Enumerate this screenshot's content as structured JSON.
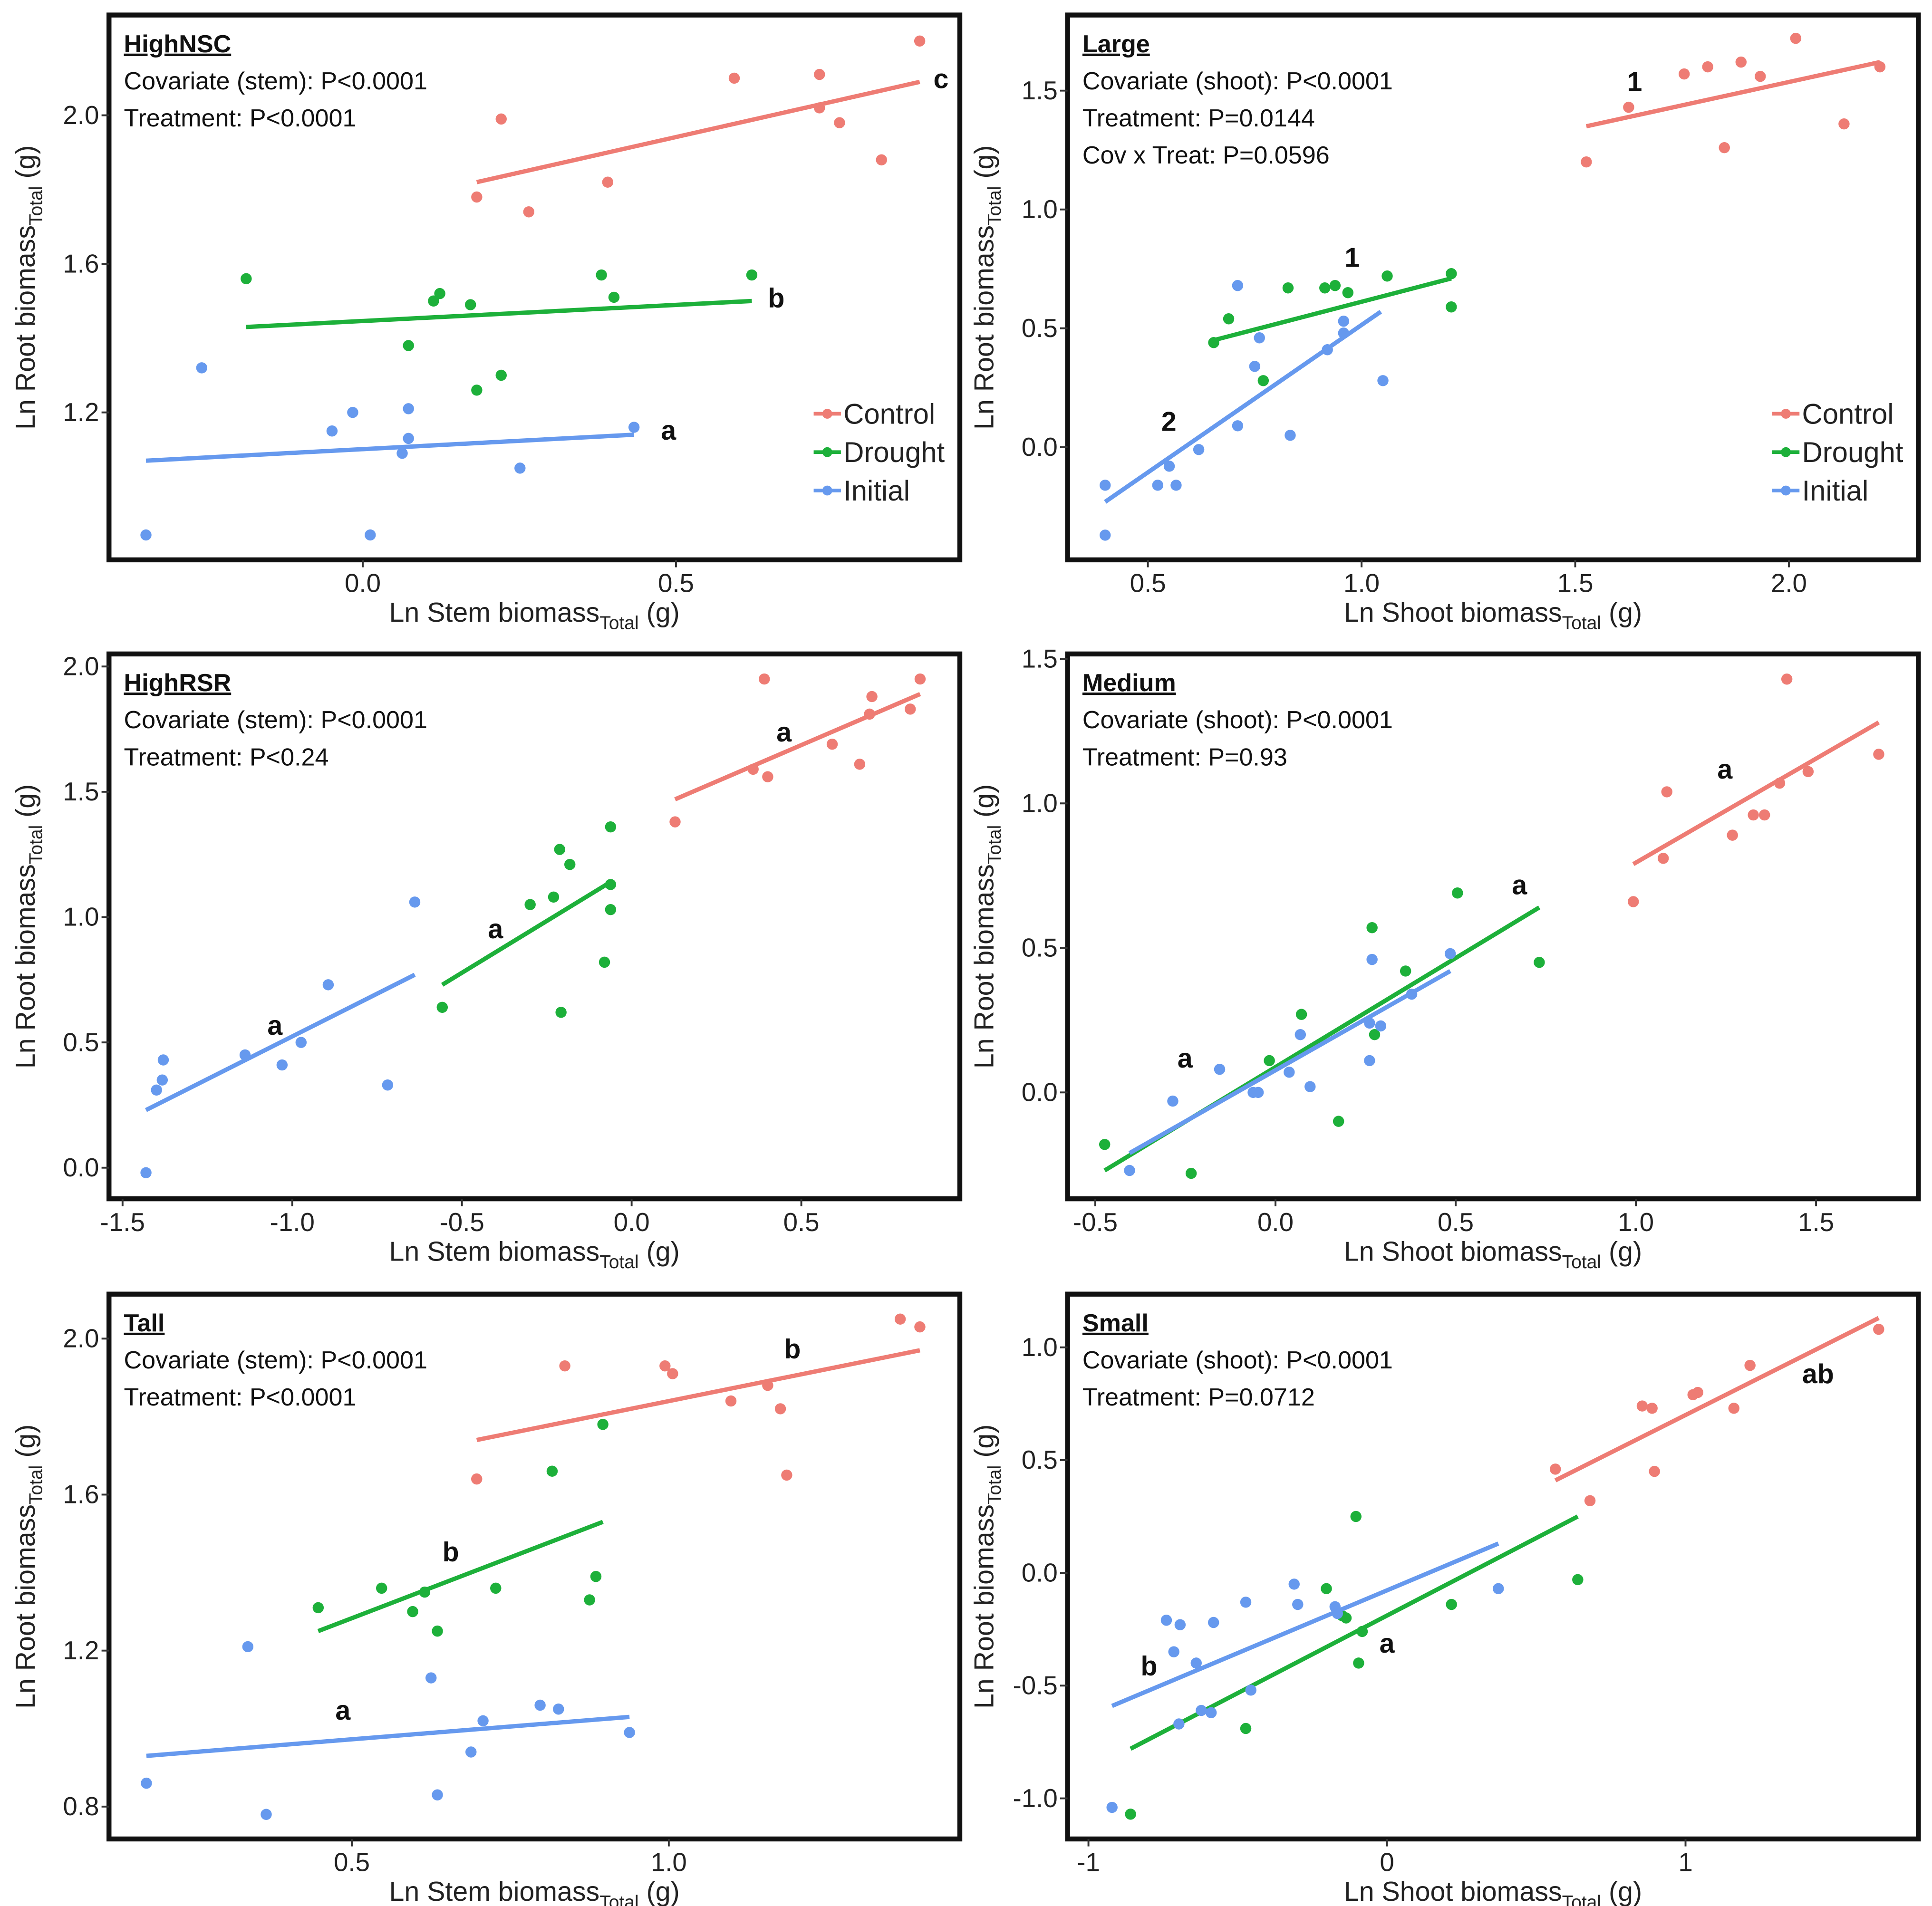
{
  "colors": {
    "Control": "#EE7C74",
    "Drought": "#1DB03A",
    "Initial": "#6699EE"
  },
  "legend": [
    "Control",
    "Drought",
    "Initial"
  ],
  "chart_data": [
    {
      "type": "scatter",
      "title": "HighNSC",
      "stats": [
        "Covariate (stem):  P<0.0001",
        "Treatment:  P<0.0001"
      ],
      "xlabel": {
        "main": "Ln Stem biomass",
        "sub": "Total",
        "unit": " (g)"
      },
      "ylabel": {
        "main": "Ln Root biomass",
        "sub": "Total",
        "unit": " (g)"
      },
      "xlim": [
        -0.405,
        0.953
      ],
      "ylim": [
        0.803,
        2.27
      ],
      "xticks": [
        "0.0",
        "0.5"
      ],
      "xtick_values": [
        0,
        0.5
      ],
      "yticks": [
        "1.2",
        "1.6",
        "2.0"
      ],
      "ytick_values": [
        1.2,
        1.6,
        2.0
      ],
      "show_legend": true,
      "series": [
        {
          "name": "Control",
          "letter": "c",
          "letter_at": [
            0.923,
            2.1
          ],
          "x": [
            0.889,
            0.593,
            0.729,
            0.729,
            0.761,
            0.828,
            0.221,
            0.182,
            0.265,
            0.391
          ],
          "y": [
            2.2,
            2.1,
            2.11,
            2.02,
            1.98,
            1.88,
            1.99,
            1.78,
            1.74,
            1.82
          ],
          "fit": [
            [
              0.182,
              1.82
            ],
            [
              0.889,
              2.09
            ]
          ]
        },
        {
          "name": "Drought",
          "letter": "b",
          "letter_at": [
            0.66,
            1.51
          ],
          "x": [
            -0.186,
            0.073,
            0.113,
            0.123,
            0.172,
            0.182,
            0.221,
            0.381,
            0.401,
            0.621
          ],
          "y": [
            1.56,
            1.38,
            1.5,
            1.52,
            1.49,
            1.26,
            1.3,
            1.57,
            1.51,
            1.57
          ],
          "fit": [
            [
              -0.186,
              1.43
            ],
            [
              0.621,
              1.5
            ]
          ]
        },
        {
          "name": "Initial",
          "letter": "a",
          "letter_at": [
            0.488,
            1.153
          ],
          "x": [
            -0.257,
            -0.346,
            0.012,
            -0.049,
            -0.016,
            0.073,
            0.073,
            0.063,
            0.251,
            0.433
          ],
          "y": [
            1.32,
            0.87,
            0.87,
            1.15,
            1.2,
            1.21,
            1.13,
            1.09,
            1.05,
            1.16
          ],
          "fit": [
            [
              -0.346,
              1.07
            ],
            [
              0.433,
              1.14
            ]
          ]
        }
      ]
    },
    {
      "type": "scatter",
      "title": "Large",
      "stats": [
        "Covariate (shoot):  P<0.0001",
        "Treatment:  P=0.0144",
        "Cov x Treat: P=0.0596"
      ],
      "xlabel": {
        "main": "Ln Shoot biomass",
        "sub": "Total",
        "unit": " (g)"
      },
      "ylabel": {
        "main": "Ln Root biomass",
        "sub": "Total",
        "unit": " (g)"
      },
      "xlim": [
        0.312,
        2.303
      ],
      "ylim": [
        -0.474,
        1.818
      ],
      "xticks": [
        "0.5",
        "1.0",
        "1.5",
        "2.0"
      ],
      "xtick_values": [
        0.5,
        1.0,
        1.5,
        2.0
      ],
      "yticks": [
        "0.0",
        "0.5",
        "1.0",
        "1.5"
      ],
      "ytick_values": [
        0,
        0.5,
        1.0,
        1.5
      ],
      "show_legend": true,
      "series": [
        {
          "name": "Control",
          "letter": "1",
          "letter_at": [
            1.639,
            1.54
          ],
          "x": [
            1.526,
            1.625,
            1.755,
            1.81,
            1.888,
            1.933,
            2.016,
            1.849,
            2.129,
            2.213
          ],
          "y": [
            1.2,
            1.43,
            1.57,
            1.6,
            1.62,
            1.56,
            1.72,
            1.26,
            1.36,
            1.6
          ],
          "fit": [
            [
              1.526,
              1.35
            ],
            [
              2.213,
              1.62
            ]
          ]
        },
        {
          "name": "Drought",
          "letter": "1",
          "letter_at": [
            0.978,
            0.8
          ],
          "x": [
            0.654,
            0.689,
            0.77,
            0.828,
            0.938,
            0.914,
            0.968,
            1.06,
            1.21,
            1.21
          ],
          "y": [
            0.44,
            0.54,
            0.28,
            0.67,
            0.68,
            0.67,
            0.65,
            0.72,
            0.73,
            0.59
          ],
          "fit": [
            [
              0.654,
              0.45
            ],
            [
              1.21,
              0.71
            ]
          ]
        },
        {
          "name": "Initial",
          "letter": "2",
          "letter_at": [
            0.549,
            0.11
          ],
          "x": [
            0.4,
            0.4,
            0.523,
            0.55,
            0.566,
            0.619,
            0.71,
            0.71,
            0.75,
            0.761,
            0.833,
            0.92,
            0.958,
            0.958,
            1.05
          ],
          "y": [
            -0.16,
            -0.37,
            -0.16,
            -0.08,
            -0.16,
            -0.01,
            0.68,
            0.09,
            0.34,
            0.46,
            0.05,
            0.41,
            0.53,
            0.48,
            0.28
          ],
          "fit": [
            [
              0.4,
              -0.23
            ],
            [
              1.045,
              0.57
            ]
          ]
        }
      ]
    },
    {
      "type": "scatter",
      "title": "HighRSR",
      "stats": [
        "Covariate (stem):  P<0.0001",
        "Treatment:  P<0.24"
      ],
      "xlabel": {
        "main": "Ln Stem biomass",
        "sub": "Total",
        "unit": " (g)"
      },
      "ylabel": {
        "main": "Ln Root biomass",
        "sub": "Total",
        "unit": " (g)"
      },
      "xlim": [
        -1.54,
        0.967
      ],
      "ylim": [
        -0.124,
        2.05
      ],
      "xticks": [
        "-1.5",
        "-1.0",
        "-0.5",
        "0.0",
        "0.5"
      ],
      "xtick_values": [
        -1.5,
        -1.0,
        -0.5,
        0,
        0.5
      ],
      "yticks": [
        "0.0",
        "0.5",
        "1.0",
        "1.5",
        "2.0"
      ],
      "ytick_values": [
        0,
        0.5,
        1.0,
        1.5,
        2.0
      ],
      "show_legend": false,
      "series": [
        {
          "name": "Control",
          "letter": "a",
          "letter_at": [
            0.449,
            1.74
          ],
          "x": [
            0.128,
            0.358,
            0.391,
            0.401,
            0.591,
            0.672,
            0.701,
            0.708,
            0.821,
            0.85
          ],
          "y": [
            1.38,
            1.59,
            1.95,
            1.56,
            1.69,
            1.61,
            1.81,
            1.88,
            1.83,
            1.95
          ],
          "fit": [
            [
              0.128,
              1.47
            ],
            [
              0.85,
              1.89
            ]
          ]
        },
        {
          "name": "Drought",
          "letter": "a",
          "letter_at": [
            -0.401,
            0.955
          ],
          "x": [
            -0.558,
            -0.299,
            -0.23,
            -0.212,
            -0.182,
            -0.208,
            -0.08,
            -0.062,
            -0.062,
            -0.062
          ],
          "y": [
            0.64,
            1.05,
            1.08,
            1.27,
            1.21,
            0.62,
            0.82,
            1.36,
            1.13,
            1.03
          ],
          "fit": [
            [
              -0.558,
              0.73
            ],
            [
              -0.062,
              1.14
            ]
          ]
        },
        {
          "name": "Initial",
          "letter": "a",
          "letter_at": [
            -1.051,
            0.57
          ],
          "x": [
            -1.431,
            -1.4,
            -1.38,
            -1.383,
            -1.139,
            -1.03,
            -0.974,
            -0.894,
            -0.719,
            -0.639
          ],
          "y": [
            -0.02,
            0.31,
            0.43,
            0.35,
            0.45,
            0.41,
            0.5,
            0.73,
            0.33,
            1.06
          ],
          "fit": [
            [
              -1.431,
              0.23
            ],
            [
              -0.639,
              0.77
            ]
          ]
        }
      ]
    },
    {
      "type": "scatter",
      "title": "Medium",
      "stats": [
        "Covariate (shoot):  P<0.0001",
        "Treatment:  P=0.93"
      ],
      "xlabel": {
        "main": "Ln Shoot biomass",
        "sub": "Total",
        "unit": " (g)"
      },
      "ylabel": {
        "main": "Ln Root biomass",
        "sub": "Total",
        "unit": " (g)"
      },
      "xlim": [
        -0.577,
        1.784
      ],
      "ylim": [
        -0.368,
        1.517
      ],
      "xticks": [
        "-0.5",
        "0.0",
        "0.5",
        "1.0",
        "1.5"
      ],
      "xtick_values": [
        -0.5,
        0,
        0.5,
        1.0,
        1.5
      ],
      "yticks": [
        "0.0",
        "0.5",
        "1.0",
        "1.5"
      ],
      "ytick_values": [
        0,
        0.5,
        1.0,
        1.5
      ],
      "show_legend": false,
      "series": [
        {
          "name": "Control",
          "letter": "a",
          "letter_at": [
            1.247,
            1.12
          ],
          "x": [
            0.993,
            1.076,
            1.086,
            1.268,
            1.326,
            1.357,
            1.399,
            1.419,
            1.478,
            1.674
          ],
          "y": [
            0.66,
            0.81,
            1.04,
            0.89,
            0.96,
            0.96,
            1.07,
            1.43,
            1.11,
            1.17
          ],
          "fit": [
            [
              0.993,
              0.79
            ],
            [
              1.674,
              1.28
            ]
          ]
        },
        {
          "name": "Drought",
          "letter": "a",
          "letter_at": [
            0.677,
            0.72
          ],
          "x": [
            -0.474,
            -0.234,
            -0.017,
            0.072,
            0.175,
            0.268,
            0.275,
            0.361,
            0.505,
            0.732
          ],
          "y": [
            -0.18,
            -0.28,
            0.11,
            0.27,
            -0.1,
            0.57,
            0.2,
            0.42,
            0.69,
            0.45
          ],
          "fit": [
            [
              -0.474,
              -0.27
            ],
            [
              0.732,
              0.64
            ]
          ]
        },
        {
          "name": "Initial",
          "letter": "a",
          "letter_at": [
            -0.251,
            0.12
          ],
          "x": [
            -0.405,
            -0.285,
            -0.155,
            -0.062,
            -0.048,
            0.038,
            0.069,
            0.096,
            0.261,
            0.261,
            0.268,
            0.292,
            0.378,
            0.485
          ],
          "y": [
            -0.27,
            -0.03,
            0.08,
            0.0,
            0.0,
            0.07,
            0.2,
            0.02,
            0.11,
            0.24,
            0.46,
            0.23,
            0.34,
            0.48
          ],
          "fit": [
            [
              -0.405,
              -0.21
            ],
            [
              0.485,
              0.42
            ]
          ]
        }
      ]
    },
    {
      "type": "scatter",
      "title": "Tall",
      "stats": [
        "Covariate (stem):  P<0.0001",
        "Treatment: P<0.0001"
      ],
      "xlabel": {
        "main": "Ln Stem biomass",
        "sub": "Total",
        "unit": " (g)"
      },
      "ylabel": {
        "main": "Ln Root biomass",
        "sub": "Total",
        "unit": " (g)"
      },
      "xlim": [
        0.117,
        1.459
      ],
      "ylim": [
        0.717,
        2.114
      ],
      "xticks": [
        "0.5",
        "1.0"
      ],
      "xtick_values": [
        0.5,
        1.0
      ],
      "yticks": [
        "0.8",
        "1.2",
        "1.6",
        "2.0"
      ],
      "ytick_values": [
        0.8,
        1.2,
        1.6,
        2.0
      ],
      "show_legend": false,
      "series": [
        {
          "name": "Control",
          "letter": "b",
          "letter_at": [
            1.195,
            1.975
          ],
          "x": [
            0.697,
            0.836,
            0.994,
            1.006,
            1.098,
            1.156,
            1.176,
            1.186,
            1.365,
            1.396
          ],
          "y": [
            1.64,
            1.93,
            1.93,
            1.91,
            1.84,
            1.88,
            1.82,
            1.65,
            2.05,
            2.03
          ],
          "fit": [
            [
              0.697,
              1.74
            ],
            [
              1.396,
              1.97
            ]
          ]
        },
        {
          "name": "Drought",
          "letter": "b",
          "letter_at": [
            0.656,
            1.455
          ],
          "x": [
            0.447,
            0.547,
            0.596,
            0.615,
            0.635,
            0.727,
            0.816,
            0.875,
            0.885,
            0.896
          ],
          "y": [
            1.31,
            1.36,
            1.3,
            1.35,
            1.25,
            1.36,
            1.66,
            1.33,
            1.39,
            1.78
          ],
          "fit": [
            [
              0.447,
              1.25
            ],
            [
              0.896,
              1.53
            ]
          ]
        },
        {
          "name": "Initial",
          "letter": "a",
          "letter_at": [
            0.486,
            1.048
          ],
          "x": [
            0.176,
            0.336,
            0.365,
            0.625,
            0.635,
            0.688,
            0.707,
            0.797,
            0.826,
            0.938
          ],
          "y": [
            0.86,
            1.21,
            0.78,
            1.13,
            0.83,
            0.94,
            1.02,
            1.06,
            1.05,
            0.99
          ],
          "fit": [
            [
              0.176,
              0.93
            ],
            [
              0.938,
              1.03
            ]
          ]
        }
      ]
    },
    {
      "type": "scatter",
      "title": "Small",
      "stats": [
        "Covariate (shoot):  P<0.0001",
        "Treatment:  P=0.0712"
      ],
      "xlabel": {
        "main": "Ln Shoot biomass",
        "sub": "Total",
        "unit": " (g)"
      },
      "ylabel": {
        "main": "Ln Root biomass",
        "sub": "Total",
        "unit": " (g)"
      },
      "xlim": [
        -1.07,
        1.78
      ],
      "ylim": [
        -1.18,
        1.236
      ],
      "xticks": [
        "-1",
        "0",
        "1"
      ],
      "xtick_values": [
        -1,
        0,
        1
      ],
      "yticks": [
        "-1.0",
        "-0.5",
        "0.0",
        "0.5",
        "1.0"
      ],
      "ytick_values": [
        -1.0,
        -0.5,
        0,
        0.5,
        1.0
      ],
      "show_legend": false,
      "series": [
        {
          "name": "Control",
          "letter": "ab",
          "letter_at": [
            1.444,
            0.885
          ],
          "x": [
            0.564,
            0.68,
            0.855,
            0.888,
            0.896,
            1.025,
            1.041,
            1.162,
            1.216,
            1.647
          ],
          "y": [
            0.46,
            0.32,
            0.74,
            0.73,
            0.45,
            0.79,
            0.8,
            0.73,
            0.92,
            1.08
          ],
          "fit": [
            [
              0.564,
              0.41
            ],
            [
              1.647,
              1.13
            ]
          ]
        },
        {
          "name": "Drought",
          "letter": "a",
          "letter_at": [
            0.0,
            -0.31
          ],
          "x": [
            -0.859,
            -0.473,
            -0.203,
            -0.137,
            -0.104,
            -0.095,
            -0.083,
            0.216,
            0.639,
            -0.15
          ],
          "y": [
            -1.07,
            -0.69,
            -0.07,
            -0.2,
            0.25,
            -0.4,
            -0.26,
            -0.14,
            -0.03,
            -0.19
          ],
          "fit": [
            [
              -0.859,
              -0.78
            ],
            [
              0.639,
              0.25
            ]
          ]
        },
        {
          "name": "Initial",
          "letter": "b",
          "letter_at": [
            -0.797,
            -0.41
          ],
          "x": [
            -0.921,
            -0.739,
            -0.714,
            -0.693,
            -0.697,
            -0.639,
            -0.622,
            -0.589,
            -0.581,
            -0.473,
            -0.456,
            -0.311,
            -0.299,
            -0.174,
            -0.166,
            0.373
          ],
          "y": [
            -1.04,
            -0.21,
            -0.35,
            -0.23,
            -0.67,
            -0.4,
            -0.61,
            -0.62,
            -0.22,
            -0.13,
            -0.52,
            -0.05,
            -0.14,
            -0.15,
            -0.18,
            -0.07
          ],
          "fit": [
            [
              -0.921,
              -0.59
            ],
            [
              0.373,
              0.13
            ]
          ]
        }
      ]
    }
  ]
}
